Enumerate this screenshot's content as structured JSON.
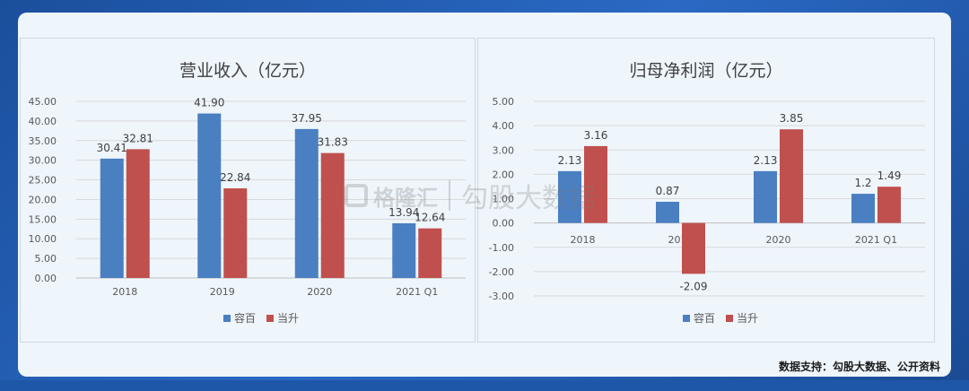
{
  "footer": {
    "source": "数据支持：勾股大数据、公开资料"
  },
  "watermark": {
    "brand": "格隆汇",
    "text": "勾股大数据"
  },
  "colors": {
    "series1": "#4a7fc1",
    "series2": "#c0504d",
    "grid": "#d9d9d9",
    "text": "#595959"
  },
  "chart_data": [
    {
      "type": "bar",
      "title": "营业收入（亿元）",
      "categories": [
        "2018",
        "2019",
        "2020",
        "2021 Q1"
      ],
      "series": [
        {
          "name": "容百",
          "values": [
            30.41,
            41.9,
            37.95,
            13.94
          ]
        },
        {
          "name": "当升",
          "values": [
            32.81,
            22.84,
            31.83,
            12.64
          ]
        }
      ],
      "value_labels": [
        [
          "30.41",
          "41.90",
          "37.95",
          "13.94"
        ],
        [
          "32.81",
          "22.84",
          "31.83",
          "12.64"
        ]
      ],
      "ylim": [
        0,
        45
      ],
      "yticks": [
        "0.00",
        "5.00",
        "10.00",
        "15.00",
        "20.00",
        "25.00",
        "30.00",
        "35.00",
        "40.00",
        "45.00"
      ],
      "grid": true,
      "legend": "bottom"
    },
    {
      "type": "bar",
      "title": "归母净利润（亿元）",
      "categories": [
        "2018",
        "2019",
        "2020",
        "2021 Q1"
      ],
      "series": [
        {
          "name": "容百",
          "values": [
            2.13,
            0.87,
            2.13,
            1.2
          ]
        },
        {
          "name": "当升",
          "values": [
            3.16,
            -2.09,
            3.85,
            1.49
          ]
        }
      ],
      "value_labels": [
        [
          "2.13",
          "0.87",
          "2.13",
          "1.2"
        ],
        [
          "3.16",
          "-2.09",
          "3.85",
          "1.49"
        ]
      ],
      "ylim": [
        -3,
        5
      ],
      "yticks": [
        "-3.00",
        "-2.00",
        "-1.00",
        "0.00",
        "1.00",
        "2.00",
        "3.00",
        "4.00",
        "5.00"
      ],
      "grid": true,
      "legend": "bottom"
    }
  ]
}
